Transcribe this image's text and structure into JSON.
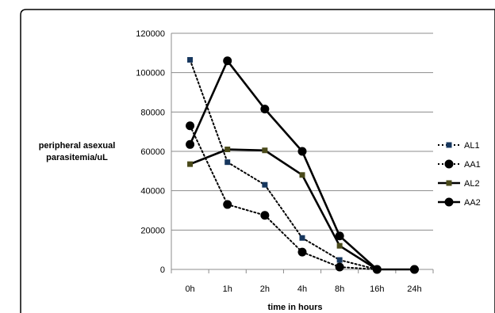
{
  "chart_data": {
    "type": "line",
    "title": "",
    "xlabel": "time in hours",
    "ylabel_lines": [
      "peripheral asexual",
      "parasitemia/uL"
    ],
    "categories": [
      "0h",
      "1h",
      "2h",
      "4h",
      "8h",
      "16h",
      "24h"
    ],
    "ylim": [
      0,
      120000
    ],
    "yticks": [
      0,
      20000,
      40000,
      60000,
      80000,
      100000,
      120000
    ],
    "grid": "horizontal",
    "legend_position": "right",
    "series": [
      {
        "name": "AL1",
        "style": "dotted",
        "marker": "square",
        "marker_color": "#17375e",
        "line_color": "#000000",
        "values": [
          106500,
          54500,
          43000,
          16000,
          4800,
          0,
          null
        ]
      },
      {
        "name": "AA1",
        "style": "dotted",
        "marker": "circle",
        "marker_color": "#000000",
        "line_color": "#000000",
        "values": [
          73000,
          33000,
          27500,
          8800,
          1200,
          0,
          0
        ]
      },
      {
        "name": "AL2",
        "style": "solid",
        "marker": "square",
        "marker_color": "#4a4a1a",
        "line_color": "#000000",
        "values": [
          53500,
          61000,
          60500,
          48000,
          12000,
          0,
          null
        ]
      },
      {
        "name": "AA2",
        "style": "solid",
        "marker": "circle",
        "marker_color": "#000000",
        "line_color": "#000000",
        "values": [
          63500,
          106000,
          81500,
          60000,
          17000,
          0,
          0
        ]
      }
    ]
  }
}
